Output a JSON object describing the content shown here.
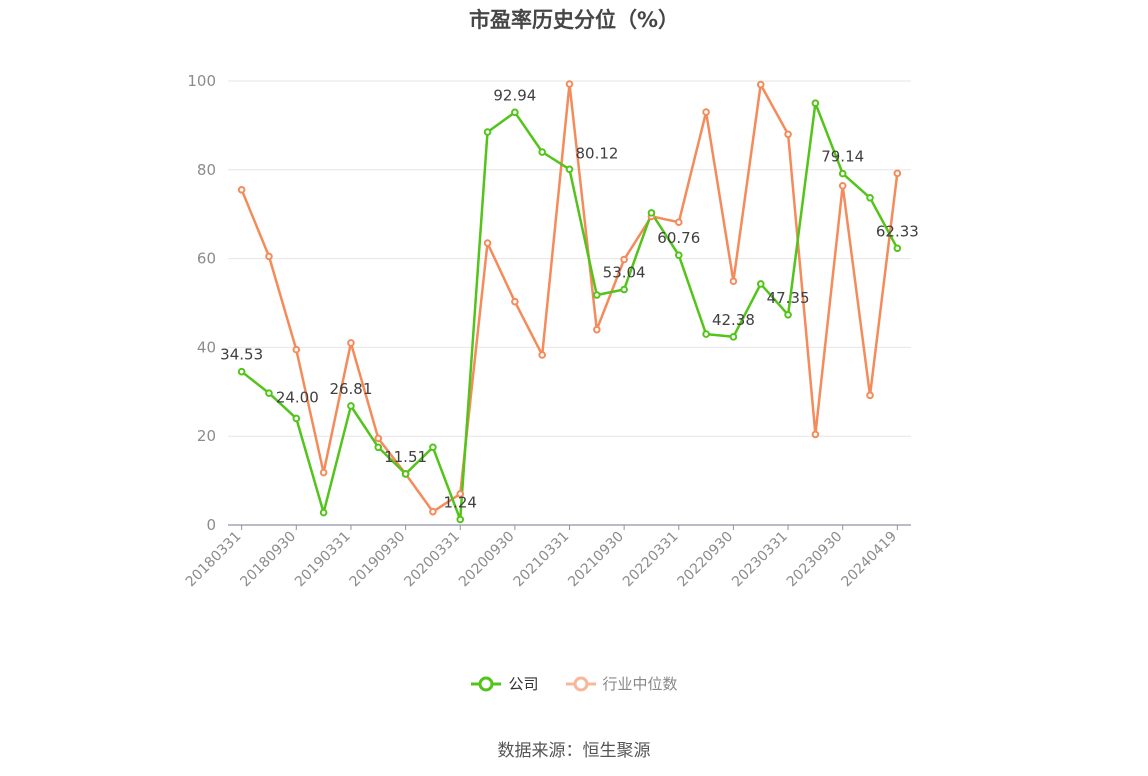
{
  "chart_data": {
    "type": "line",
    "title": "市盈率历史分位（%）",
    "ylim": [
      0,
      100
    ],
    "yticks": [
      0,
      20,
      40,
      60,
      80,
      100
    ],
    "xtick_labels": [
      "20180331",
      "20180930",
      "20190331",
      "20190930",
      "20200331",
      "20200930",
      "20210331",
      "20210930",
      "20220331",
      "20220930",
      "20230331",
      "20230930",
      "20240419"
    ],
    "x": [
      "20180331",
      "20180630",
      "20180930",
      "20181231",
      "20190331",
      "20190630",
      "20190930",
      "20191231",
      "20200331",
      "20200630",
      "20200930",
      "20201231",
      "20210331",
      "20210630",
      "20210930",
      "20211231",
      "20220331",
      "20220630",
      "20220930",
      "20221231",
      "20230331",
      "20230630",
      "20230930",
      "20231231",
      "20240419"
    ],
    "grid": true,
    "legend_position": "bottom",
    "series": [
      {
        "name": "公司",
        "color": "#52c41a",
        "values": [
          34.53,
          29.7,
          24.0,
          2.8,
          26.81,
          17.5,
          11.51,
          17.5,
          1.24,
          88.5,
          92.94,
          84.0,
          80.12,
          51.8,
          53.04,
          70.3,
          60.76,
          43.0,
          42.38,
          54.3,
          47.35,
          95.0,
          79.14,
          73.7,
          62.33
        ],
        "data_labels": [
          {
            "index": 0,
            "text": "34.53"
          },
          {
            "index": 2,
            "text": "24.00"
          },
          {
            "index": 4,
            "text": "26.81"
          },
          {
            "index": 6,
            "text": "11.51"
          },
          {
            "index": 8,
            "text": "1.24"
          },
          {
            "index": 10,
            "text": "92.94"
          },
          {
            "index": 12,
            "text": "80.12"
          },
          {
            "index": 14,
            "text": "53.04"
          },
          {
            "index": 16,
            "text": "60.76"
          },
          {
            "index": 18,
            "text": "42.38"
          },
          {
            "index": 20,
            "text": "47.35"
          },
          {
            "index": 22,
            "text": "79.14"
          },
          {
            "index": 24,
            "text": "62.33"
          }
        ]
      },
      {
        "name": "行业中位数",
        "color": "#f58a5a",
        "values": [
          75.5,
          60.5,
          39.5,
          11.8,
          41.0,
          19.5,
          11.5,
          3.0,
          7.0,
          63.5,
          50.3,
          38.3,
          99.3,
          44.0,
          59.8,
          69.5,
          68.2,
          93.0,
          54.9,
          99.2,
          88.0,
          20.4,
          76.4,
          29.2,
          79.2
        ],
        "data_labels": []
      }
    ]
  },
  "legend": {
    "items": [
      {
        "label": "公司",
        "color": "#52c41a"
      },
      {
        "label": "行业中位数",
        "color": "#f9b79a"
      }
    ]
  },
  "source": "数据来源：恒生聚源"
}
